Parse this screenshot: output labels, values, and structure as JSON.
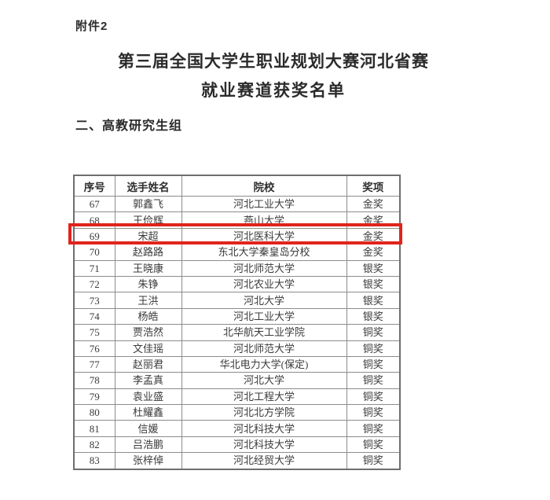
{
  "page": {
    "attachment_label": "附件2",
    "title_line1": "第三届全国大学生职业规划大赛河北省赛",
    "title_line2": "就业赛道获奖名单",
    "section_heading": "二、高教研究生组"
  },
  "table": {
    "headers": [
      "序号",
      "选手姓名",
      "院校",
      "奖项"
    ],
    "rows": [
      {
        "no": "67",
        "name": "郭鑫飞",
        "school": "河北工业大学",
        "award": "金奖",
        "highlighted": false
      },
      {
        "no": "68",
        "name": "王俭辉",
        "school": "燕山大学",
        "award": "金奖",
        "highlighted": false
      },
      {
        "no": "69",
        "name": "宋超",
        "school": "河北医科大学",
        "award": "金奖",
        "highlighted": true
      },
      {
        "no": "70",
        "name": "赵路路",
        "school": "东北大学秦皇岛分校",
        "award": "金奖",
        "highlighted": false
      },
      {
        "no": "71",
        "name": "王晓康",
        "school": "河北师范大学",
        "award": "银奖",
        "highlighted": false
      },
      {
        "no": "72",
        "name": "朱铮",
        "school": "河北农业大学",
        "award": "银奖",
        "highlighted": false
      },
      {
        "no": "73",
        "name": "王洪",
        "school": "河北大学",
        "award": "银奖",
        "highlighted": false
      },
      {
        "no": "74",
        "name": "杨皓",
        "school": "河北工业大学",
        "award": "银奖",
        "highlighted": false
      },
      {
        "no": "75",
        "name": "贾浩然",
        "school": "北华航天工业学院",
        "award": "铜奖",
        "highlighted": false
      },
      {
        "no": "76",
        "name": "文佳瑶",
        "school": "河北师范大学",
        "award": "铜奖",
        "highlighted": false
      },
      {
        "no": "77",
        "name": "赵丽君",
        "school": "华北电力大学(保定)",
        "award": "铜奖",
        "highlighted": false
      },
      {
        "no": "78",
        "name": "李孟真",
        "school": "河北大学",
        "award": "铜奖",
        "highlighted": false
      },
      {
        "no": "79",
        "name": "袁业盛",
        "school": "河北工程大学",
        "award": "铜奖",
        "highlighted": false
      },
      {
        "no": "80",
        "name": "杜耀鑫",
        "school": "河北北方学院",
        "award": "铜奖",
        "highlighted": false
      },
      {
        "no": "81",
        "name": "信媛",
        "school": "河北科技大学",
        "award": "铜奖",
        "highlighted": false
      },
      {
        "no": "82",
        "name": "吕浩鹏",
        "school": "河北科技大学",
        "award": "铜奖",
        "highlighted": false
      },
      {
        "no": "83",
        "name": "张梓倬",
        "school": "河北经贸大学",
        "award": "铜奖",
        "highlighted": false
      }
    ]
  },
  "colors": {
    "highlight_red": "#e0241c",
    "text": "#3a3a3a",
    "table_border": "#8c8c8c"
  },
  "layout_metrics": {
    "header_row_height": 26.4,
    "data_row_height": 19.4
  }
}
